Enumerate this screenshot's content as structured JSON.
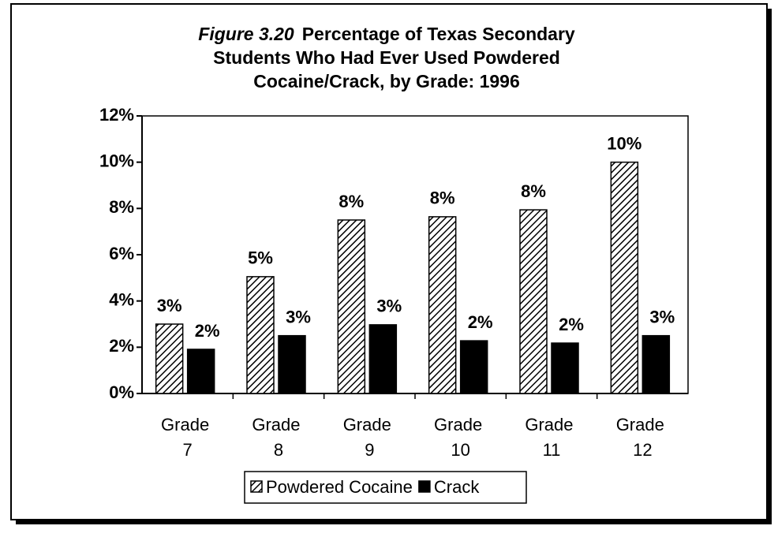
{
  "chart_data": {
    "type": "bar",
    "figure_label": "Figure 3.20",
    "title_lines": [
      "Percentage of Texas Secondary",
      "Students Who Had Ever Used Powdered",
      "Cocaine/Crack, by Grade: 1996"
    ],
    "categories": [
      "Grade 7",
      "Grade 8",
      "Grade 9",
      "Grade 10",
      "Grade 11",
      "Grade 12"
    ],
    "series": [
      {
        "name": "Powdered Cocaine",
        "color": "#000000",
        "pattern": "hatch",
        "values": [
          3.0,
          5.05,
          7.5,
          7.64,
          7.94,
          10.0
        ],
        "value_labels": [
          "3%",
          "5%",
          "8%",
          "8%",
          "8%",
          "10%"
        ]
      },
      {
        "name": "Crack",
        "color": "#000000",
        "values": [
          1.91,
          2.5,
          2.97,
          2.28,
          2.18,
          2.5
        ],
        "value_labels": [
          "2%",
          "3%",
          "3%",
          "2%",
          "2%",
          "3%"
        ]
      }
    ],
    "ylim": [
      0,
      12
    ],
    "yticks": [
      {
        "value": 0,
        "label": "0%"
      },
      {
        "value": 2,
        "label": "2%"
      },
      {
        "value": 4,
        "label": "4%"
      },
      {
        "value": 6,
        "label": "6%"
      },
      {
        "value": 8,
        "label": "8%"
      },
      {
        "value": 10,
        "label": "10%"
      },
      {
        "value": 12,
        "label": "12%"
      }
    ],
    "legend": "bottom"
  }
}
